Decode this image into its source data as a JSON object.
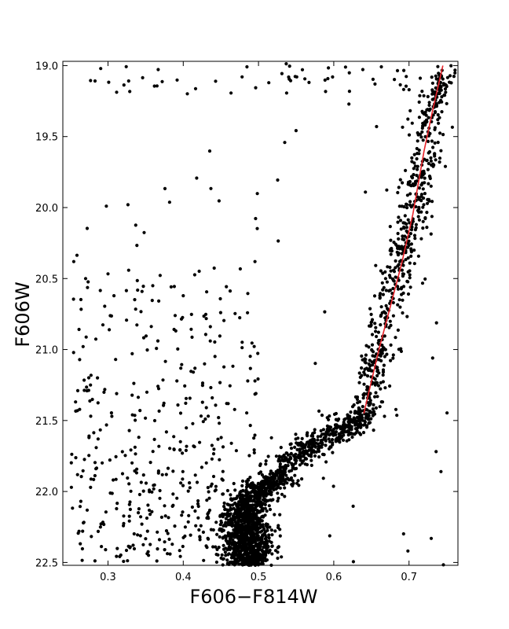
{
  "chart_data": {
    "type": "scatter",
    "title": "",
    "xlabel": "F606−F814W",
    "ylabel": "F606W",
    "xlim": [
      0.24,
      0.765
    ],
    "ylim": [
      22.52,
      18.97
    ],
    "y_inverted": true,
    "grid": false,
    "legend": "none",
    "x_ticks": [
      "0.3",
      "0.4",
      "0.5",
      "0.6",
      "0.7"
    ],
    "x_tick_values": [
      0.3,
      0.4,
      0.5,
      0.6,
      0.7
    ],
    "y_ticks": [
      "19.0",
      "19.5",
      "20.0",
      "20.5",
      "21.0",
      "21.5",
      "22.0",
      "22.5"
    ],
    "y_tick_values": [
      19.0,
      19.5,
      20.0,
      20.5,
      21.0,
      21.5,
      22.0,
      22.5
    ],
    "series": [
      {
        "kind": "points",
        "color": "#000000",
        "approx_count": 2600,
        "structure": [
          {
            "region": "main-sequence turn-off",
            "color_range": [
              0.455,
              0.53
            ],
            "mag_range": [
              21.9,
              22.52
            ]
          },
          {
            "region": "subgiant branch",
            "from": [
              0.505,
              21.95
            ],
            "to": [
              0.64,
              21.45
            ]
          },
          {
            "region": "red giant branch",
            "from": [
              0.64,
              21.45
            ],
            "to": [
              0.745,
              19.0
            ]
          },
          {
            "region": "blue stragglers / field",
            "color_range": [
              0.25,
              0.5
            ],
            "mag_range": [
              20.2,
              22.5
            ]
          },
          {
            "region": "bright field stars",
            "color_range": [
              0.24,
              0.76
            ],
            "mag_range": [
              19.0,
              19.2
            ]
          }
        ]
      },
      {
        "kind": "line",
        "color": "#e8232a",
        "points": [
          [
            0.64,
            21.45
          ],
          [
            0.66,
            21.0
          ],
          [
            0.675,
            20.7
          ],
          [
            0.69,
            20.4
          ],
          [
            0.705,
            20.05
          ],
          [
            0.72,
            19.6
          ],
          [
            0.732,
            19.3
          ],
          [
            0.745,
            19.0
          ]
        ]
      }
    ]
  }
}
